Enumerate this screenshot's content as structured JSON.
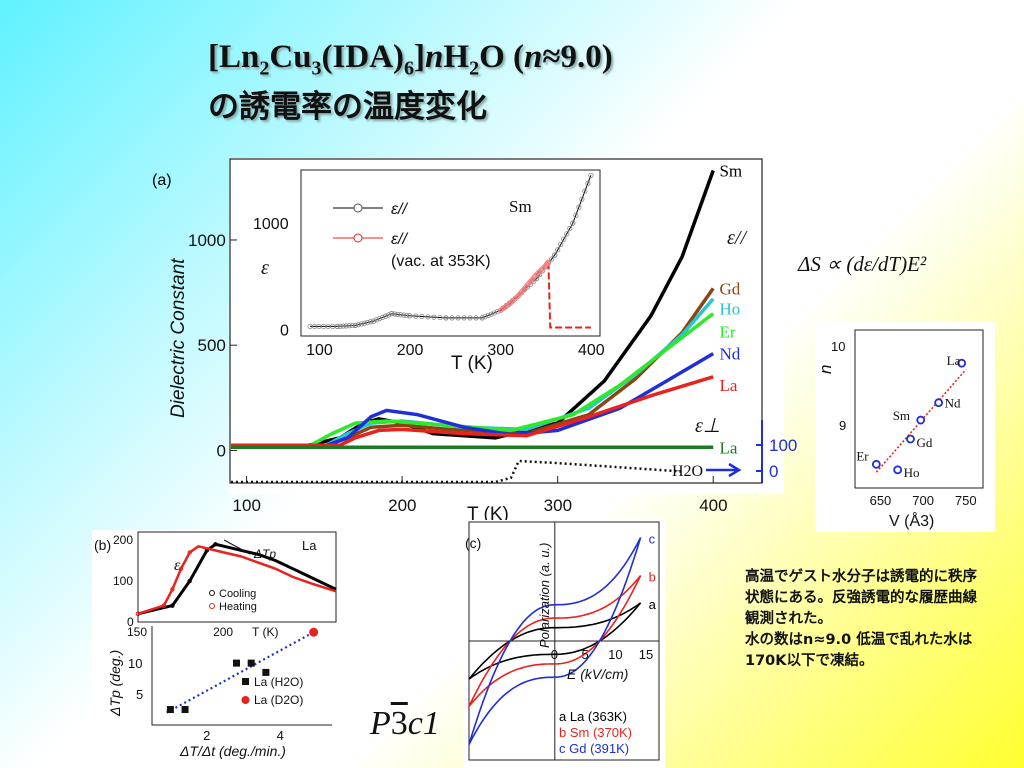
{
  "title": {
    "line1_parts": [
      "[Ln",
      "2",
      "Cu",
      "3",
      "(IDA)",
      "6",
      "]",
      "n",
      "H",
      "2",
      "O  (",
      "n",
      "≈9.0)"
    ],
    "line2": "の誘電率の温度変化"
  },
  "space_group": {
    "prefix": "P",
    "bar": "3",
    "suffix": "c1"
  },
  "formula": "ΔS ∝ (dε/dT)E²",
  "note": {
    "p1": "高温でゲスト水分子は誘電的に秩序状態にある。反強誘電的な履歴曲線観測された。",
    "p2": "水の数はn≈9.0  低温で乱れた水は170K以下で凍結。"
  },
  "colors": {
    "Sm": "#000000",
    "Gd": "#8b4513",
    "Ho": "#27c6cf",
    "Er": "#2ee82e",
    "Nd": "#1f2fd6",
    "La": "#e8231f",
    "LaPerp": "#1f7a1f",
    "H2O": "#1f2fd6"
  },
  "chart_data": [
    {
      "id": "a",
      "panel_label": "(a)",
      "type": "line",
      "xlabel": "T (K)",
      "ylabel": "Dielectric Constant",
      "xlim": [
        90,
        405
      ],
      "ylim": [
        -150,
        1380
      ],
      "xticks": [
        "100",
        "200",
        "300",
        "400"
      ],
      "yticks": [
        "0",
        "500",
        "1000"
      ],
      "right_ticks": [
        "100",
        "0"
      ],
      "annotations": {
        "epar": "ε//",
        "eperp": "ε⊥",
        "h2o": "H2O"
      },
      "series": [
        {
          "name": "Sm",
          "color": "#000000",
          "x": [
            90,
            140,
            160,
            175,
            185,
            200,
            220,
            260,
            300,
            330,
            360,
            380,
            400
          ],
          "y": [
            25,
            25,
            60,
            130,
            150,
            130,
            80,
            60,
            130,
            330,
            640,
            920,
            1330
          ]
        },
        {
          "name": "Gd",
          "color": "#8b4513",
          "x": [
            90,
            150,
            165,
            180,
            200,
            230,
            280,
            320,
            350,
            380,
            400
          ],
          "y": [
            20,
            20,
            60,
            110,
            120,
            100,
            80,
            170,
            340,
            560,
            770
          ]
        },
        {
          "name": "Ho",
          "color": "#27c6cf",
          "x": [
            90,
            150,
            165,
            180,
            200,
            240,
            280,
            320,
            350,
            380,
            400
          ],
          "y": [
            20,
            20,
            80,
            130,
            140,
            110,
            100,
            200,
            360,
            550,
            720
          ]
        },
        {
          "name": "Er",
          "color": "#2ee82e",
          "x": [
            90,
            140,
            155,
            170,
            190,
            230,
            270,
            310,
            340,
            370,
            400
          ],
          "y": [
            20,
            20,
            80,
            130,
            140,
            120,
            95,
            170,
            310,
            480,
            650
          ]
        },
        {
          "name": "Nd",
          "color": "#1f2fd6",
          "x": [
            90,
            150,
            165,
            180,
            190,
            210,
            240,
            270,
            300,
            340,
            370,
            400
          ],
          "y": [
            20,
            20,
            60,
            160,
            190,
            170,
            110,
            75,
            95,
            200,
            330,
            460
          ]
        },
        {
          "name": "La",
          "color": "#e8231f",
          "x": [
            90,
            160,
            170,
            185,
            200,
            240,
            280,
            320,
            360,
            400
          ],
          "y": [
            25,
            25,
            60,
            95,
            100,
            80,
            70,
            160,
            260,
            350
          ]
        }
      ],
      "perp": {
        "name": "La",
        "color": "#1f7a1f",
        "y": 15
      },
      "h2o": {
        "name": "H2O",
        "x": [
          90,
          260,
          270,
          275,
          300,
          340,
          380
        ],
        "y": [
          -150,
          -150,
          -130,
          -50,
          -60,
          -80,
          -100
        ]
      },
      "inset": {
        "type": "line",
        "xlabel": "T (K)",
        "ylabel": "ε",
        "xlim": [
          80,
          410
        ],
        "ylim": [
          -60,
          1500
        ],
        "xticks": [
          "100",
          "200",
          "300",
          "400"
        ],
        "yticks": [
          "0",
          "1000"
        ],
        "sample": "Sm",
        "legend": [
          "ε//",
          "ε//",
          "(vac. at 353K)"
        ],
        "series": [
          {
            "name": "ε//",
            "color": "#000000",
            "x": [
              90,
              120,
              140,
              160,
              180,
              200,
              240,
              280,
              300,
              320,
              340,
              360,
              380,
              400
            ],
            "y": [
              30,
              30,
              40,
              80,
              150,
              130,
              110,
              110,
              180,
              320,
              480,
              700,
              1000,
              1450
            ]
          },
          {
            "name": "ε// (vac. at 353K)",
            "color": "#e8231f",
            "x": [
              300,
              310,
              320,
              330,
              340,
              350,
              353,
              355,
              360,
              400
            ],
            "y": [
              180,
              240,
              320,
              420,
              520,
              600,
              640,
              20,
              20,
              20
            ]
          }
        ]
      }
    },
    {
      "id": "n-vs-V",
      "type": "scatter",
      "xlabel": "V (Å3)",
      "ylabel": "n",
      "xlim": [
        620,
        770
      ],
      "ylim": [
        8.2,
        10.2
      ],
      "xticks": [
        "650",
        "700",
        "750"
      ],
      "yticks": [
        "9",
        "10"
      ],
      "points": [
        {
          "label": "La",
          "x": 745,
          "y": 9.78
        },
        {
          "label": "Nd",
          "x": 718,
          "y": 9.28
        },
        {
          "label": "Sm",
          "x": 697,
          "y": 9.06
        },
        {
          "label": "Gd",
          "x": 685,
          "y": 8.82
        },
        {
          "label": "Er",
          "x": 645,
          "y": 8.5
        },
        {
          "label": "Ho",
          "x": 670,
          "y": 8.43
        }
      ],
      "fit": {
        "x": [
          645,
          750
        ],
        "y": [
          8.4,
          9.7
        ]
      }
    },
    {
      "id": "b",
      "panel_label": "(b)",
      "type": "scatter",
      "xlabel": "ΔT/Δt (deg./min.)",
      "ylabel": "ΔTp (deg.)",
      "xlim": [
        0.5,
        5.4
      ],
      "ylim": [
        0,
        16
      ],
      "xticks": [
        "2",
        "4"
      ],
      "yticks": [
        "5",
        "10"
      ],
      "legend": [
        "La (H2O)",
        "La (D2O)"
      ],
      "h2o_points": {
        "x": [
          1.0,
          1.4,
          2.8,
          3.2,
          3.6
        ],
        "y": [
          2.5,
          2.5,
          10,
          10,
          8.5
        ]
      },
      "d2o_points": {
        "x": [
          4.9
        ],
        "y": [
          15
        ]
      },
      "fit": {
        "x": [
          0.9,
          4.9
        ],
        "y": [
          2,
          15
        ]
      },
      "inset": {
        "type": "line",
        "sample": "La",
        "xlabel": "T (K)",
        "ylabel": "ε",
        "xlim": [
          150,
          265
        ],
        "ylim": [
          0,
          220
        ],
        "xticks": [
          "150",
          "200"
        ],
        "yticks": [
          "0",
          "100",
          "200"
        ],
        "dtp_label": "ΔTp",
        "legend": [
          "Cooling",
          "Heating"
        ],
        "cooling": {
          "color": "#000000",
          "x": [
            150,
            170,
            180,
            190,
            195,
            200,
            210,
            220,
            230,
            240,
            250,
            265
          ],
          "y": [
            20,
            40,
            100,
            175,
            190,
            185,
            175,
            165,
            150,
            130,
            110,
            80
          ]
        },
        "heating": {
          "color": "#e8231f",
          "x": [
            150,
            165,
            170,
            175,
            180,
            185,
            190,
            200,
            210,
            220,
            230,
            240,
            250,
            265
          ],
          "y": [
            20,
            40,
            80,
            130,
            170,
            185,
            180,
            170,
            160,
            145,
            130,
            110,
            95,
            75
          ]
        }
      }
    },
    {
      "id": "c",
      "panel_label": "(c)",
      "type": "line",
      "xlabel": "E (kV/cm)",
      "ylabel": "Polarization (a. u.)",
      "xlim": [
        -14,
        17
      ],
      "ylim": [
        -10,
        10
      ],
      "xticks": [
        "0",
        "5",
        "10",
        "15"
      ],
      "legend": [
        "a  La (363K)",
        "b  Sm (370K)",
        "c  Gd (391K)"
      ],
      "loops": [
        {
          "name": "a",
          "color": "#000000",
          "amp": 3.2,
          "sat": 14
        },
        {
          "name": "b",
          "color": "#e8231f",
          "amp": 5.5,
          "sat": 14
        },
        {
          "name": "c",
          "color": "#1f2fd6",
          "amp": 8.7,
          "sat": 14
        }
      ]
    }
  ]
}
